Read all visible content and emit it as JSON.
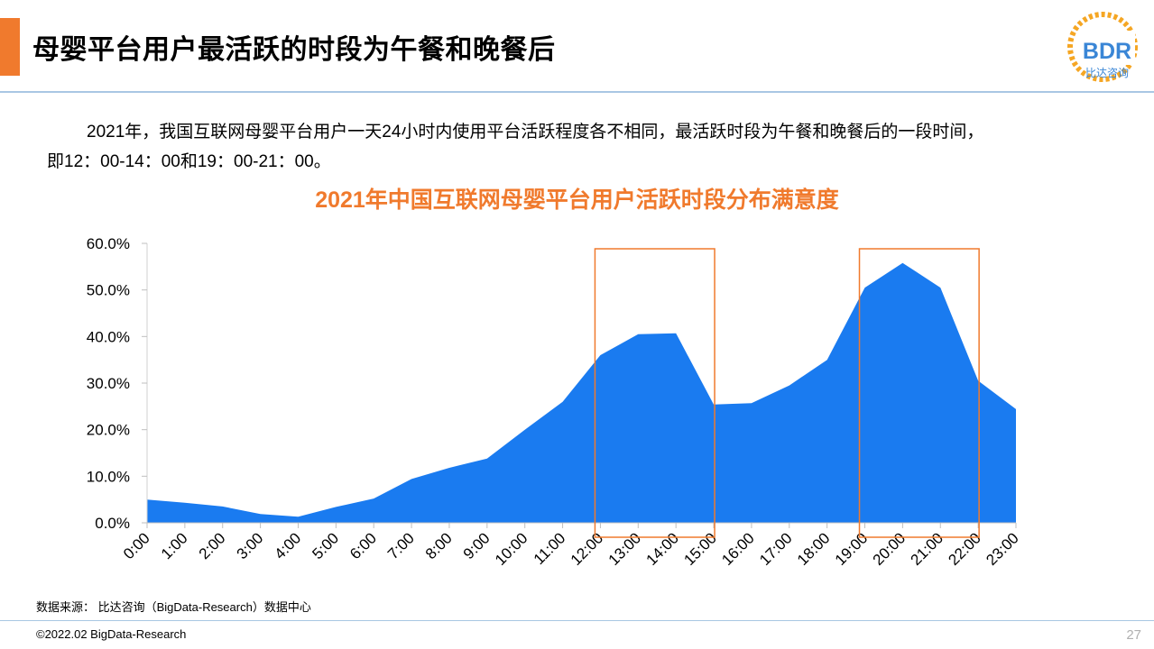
{
  "header": {
    "title": "母婴平台用户最活跃的时段为午餐和晚餐后",
    "accent_color": "#F07A2D",
    "rule_color": "#A9C7E3"
  },
  "logo": {
    "text": "BDR",
    "subtext": "比达咨询",
    "icon": "bdr-logo",
    "primary_color": "#F5A623",
    "secondary_color": "#3A86D6"
  },
  "description": {
    "line1": "2021年，我国互联网母婴平台用户一天24小时内使用平台活跃程度各不相同，最活跃时段为午餐和晚餐后的一段时间，",
    "line2": "即12：00-14：00和19：00-21：00。"
  },
  "chart_data": {
    "type": "area",
    "title": "2021年中国互联网母婴平台用户活跃时段分布满意度",
    "title_color": "#F07A2D",
    "x": [
      "0:00",
      "1:00",
      "2:00",
      "3:00",
      "4:00",
      "5:00",
      "6:00",
      "7:00",
      "8:00",
      "9:00",
      "10:00",
      "11:00",
      "12:00",
      "13:00",
      "14:00",
      "15:00",
      "16:00",
      "17:00",
      "18:00",
      "19:00",
      "20:00",
      "21:00",
      "22:00",
      "23:00"
    ],
    "series": [
      {
        "values": [
          5.0,
          4.3,
          3.5,
          1.9,
          1.3,
          3.4,
          5.2,
          9.4,
          11.8,
          13.8,
          20.0,
          26.0,
          36.0,
          40.5,
          40.7,
          25.4,
          25.7,
          29.5,
          35.0,
          50.5,
          55.8,
          50.5,
          30.5,
          24.4
        ]
      }
    ],
    "ylim": [
      0,
      60
    ],
    "yticks": [
      "0.0%",
      "10.0%",
      "20.0%",
      "30.0%",
      "40.0%",
      "50.0%",
      "60.0%"
    ],
    "y_format": "percent",
    "grid": false,
    "fill_color": "#1A7BF0",
    "highlights": [
      {
        "from": "12:00",
        "to": "15:00",
        "color": "#F07A2D"
      },
      {
        "from": "19:00",
        "to": "22:00",
        "color": "#F07A2D"
      }
    ]
  },
  "footer": {
    "source": "数据来源： 比达咨询（BigData-Research）数据中心",
    "copyright": "©2022.02 BigData-Research",
    "page_number": "27"
  }
}
